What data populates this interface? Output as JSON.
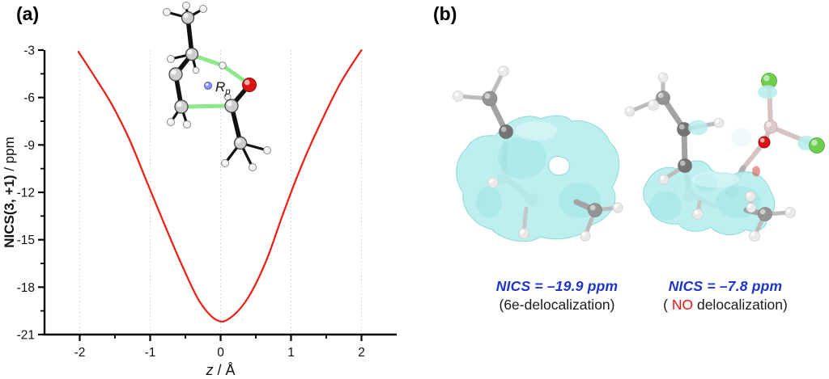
{
  "figure": {
    "background": "#ffffff"
  },
  "panels": {
    "a": {
      "label": "(a)",
      "inset": {
        "probe_label_main": "R",
        "probe_label_sub": "p"
      }
    },
    "b": {
      "label": "(b)",
      "left": {
        "nics": "NICS = –19.9 ppm",
        "sub": "(6e-delocalization)"
      },
      "right": {
        "nics": "NICS = –7.8 ppm",
        "sub_open": "( ",
        "sub_no": "NO",
        "sub_rest": " delocalization)"
      }
    }
  },
  "colors": {
    "curve": "#ee1c12",
    "nics_text": "#1c35cc",
    "no_text": "#ee1111",
    "isosurface": "#b7eded",
    "isosurface_edge": "#8ed9d9",
    "carbon": "#9a9a9a",
    "hydrogen": "#eeeeee",
    "oxygen": "#dd1512",
    "fluorine": "#6dcd4e",
    "boron": "#dccaca",
    "probe": "#8a93f5",
    "partial_bond_green": "#8de88d",
    "grid": "#cfcfcf",
    "axis": "#000000"
  },
  "chart_data": {
    "type": "line",
    "title": "",
    "xlabel": "z / Å",
    "xlabel_italic": "z",
    "xlabel_rest": " / Å",
    "ylabel": "NICS(3, +1) / ppm",
    "ylabel_bold": "NICS(3, +1)",
    "ylabel_rest": " / ppm",
    "xlim": [
      -2.5,
      2.5
    ],
    "ylim": [
      -21,
      -3
    ],
    "xticks": [
      -2,
      -1,
      0,
      1,
      2
    ],
    "xticks_minor": [
      -1.5,
      -0.5,
      0.5,
      1.5
    ],
    "yticks": [
      -3,
      -6,
      -9,
      -12,
      -15,
      -18,
      -21
    ],
    "yticks_minor": [
      -4.5,
      -7.5,
      -10.5,
      -13.5,
      -16.5,
      -19.5
    ],
    "grid": "vertical-dotted",
    "legend": "none",
    "line_color": "#ee1c12",
    "series": [
      {
        "name": "NICS(3,+1) scan along z",
        "x": [
          -2.02,
          -1.8,
          -1.55,
          -1.3,
          -1.05,
          -0.8,
          -0.55,
          -0.3,
          -0.05,
          0.15,
          0.4,
          0.65,
          0.9,
          1.15,
          1.4,
          1.7,
          2.0
        ],
        "y": [
          -3.1,
          -4.6,
          -6.4,
          -8.6,
          -11.3,
          -14.0,
          -16.6,
          -18.9,
          -20.1,
          -19.9,
          -18.6,
          -16.3,
          -13.2,
          -10.3,
          -7.8,
          -5.1,
          -3.0
        ]
      }
    ],
    "minimum": {
      "z": -0.05,
      "nics": -20.1
    }
  }
}
